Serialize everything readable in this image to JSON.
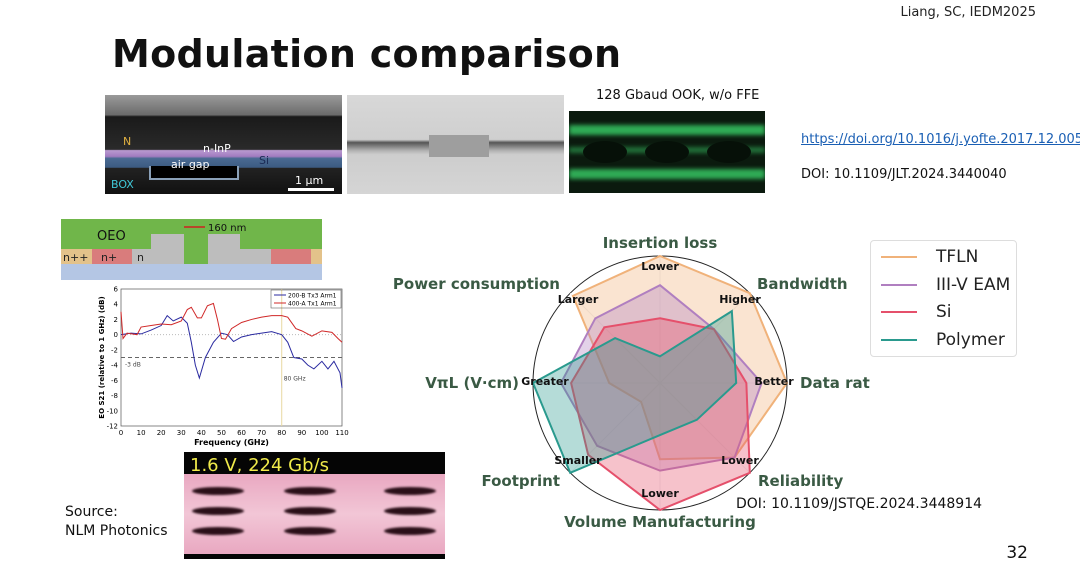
{
  "citation": "Liang, SC, IEDM2025",
  "title": "Modulation comparison",
  "sem_image": {
    "labels": [
      "N",
      "n-InP",
      "Si",
      "air gap",
      "BOX"
    ],
    "scale_bar": "1 μm"
  },
  "eye_diagram_top": {
    "caption": "128 Gbaud OOK, w/o FFE",
    "link": "https://doi.org/10.1016/j.yofte.2017.12.005",
    "doi": "DOI: 10.1109/JLT.2024.3440040"
  },
  "oeo_diagram": {
    "labels": [
      "OEO",
      "n++",
      "n+",
      "n"
    ],
    "dimension": "160 nm"
  },
  "eye_diagram_bottom": {
    "caption": "1.6 V, 224 Gb/s"
  },
  "source": {
    "line1": "Source:",
    "line2": "NLM Photonics"
  },
  "radar_doi": "DOI: 10.1109/JSTQE.2024.3448914",
  "page_number": "32",
  "chart_data": [
    {
      "type": "radar",
      "axes": [
        "Insertion loss",
        "Bandwidth",
        "Data rate",
        "Reliability",
        "Volume Manufacturing",
        "Footprint",
        "VπL (V·cm)",
        "Power consumption"
      ],
      "axis_direction_labels": [
        "Lower",
        "Larger",
        "Higher",
        "Better",
        "Greater",
        "Smaller",
        "Lower",
        "Lower"
      ],
      "range": [
        0,
        1
      ],
      "legend_position": "top-right",
      "series": [
        {
          "name": "TFLN",
          "color": "#f0b27a",
          "values": [
            1.0,
            1.0,
            1.0,
            0.83,
            0.6,
            0.21,
            0.4,
            0.97
          ]
        },
        {
          "name": "III-V EAM",
          "color": "#b07fc0",
          "values": [
            0.77,
            0.6,
            0.8,
            0.83,
            0.69,
            0.7,
            0.78,
            0.72
          ]
        },
        {
          "name": "Si",
          "color": "#e5506b",
          "values": [
            0.51,
            0.6,
            0.68,
            1.0,
            1.0,
            0.8,
            0.7,
            0.62
          ]
        },
        {
          "name": "Polymer",
          "color": "#2a9a8e",
          "values": [
            0.21,
            0.8,
            0.6,
            0.41,
            0.41,
            1.0,
            1.0,
            0.5
          ]
        }
      ]
    },
    {
      "type": "line",
      "xlabel": "Frequency (GHz)",
      "ylabel": "EO S21 (relative to 1 GHz) (dB)",
      "xlim": [
        0,
        110
      ],
      "ylim": [
        -12,
        6
      ],
      "xticks": [
        "0",
        "10",
        "20",
        "30",
        "40",
        "50",
        "60",
        "70",
        "80",
        "90",
        "100",
        "110"
      ],
      "yticks": [
        "6",
        "4",
        "2",
        "0",
        "-2",
        "-4",
        "-6",
        "-8",
        "-10",
        "-12"
      ],
      "annotations": [
        "-3 dB",
        "80 GHz"
      ],
      "legend_position": "top-right",
      "series": [
        {
          "name": "200-B Tx3 Arm1",
          "color": "#2a2aa0",
          "x": [
            0,
            5,
            10,
            15,
            20,
            23,
            26,
            30,
            33,
            35,
            37,
            39,
            42,
            46,
            50,
            53,
            56,
            60,
            65,
            70,
            75,
            80,
            83,
            86,
            90,
            93,
            96,
            100,
            103,
            106,
            109,
            110
          ],
          "y": [
            0,
            0.2,
            0.1,
            0.6,
            1.2,
            2.5,
            1.8,
            2.3,
            1.5,
            -1,
            -4,
            -5.7,
            -3,
            -1,
            0.2,
            0,
            -0.9,
            -0.3,
            0,
            0.2,
            0.4,
            0,
            -1,
            -3,
            -3.2,
            -4,
            -4.5,
            -3.5,
            -4.5,
            -3.5,
            -5,
            -7
          ]
        },
        {
          "name": "400-A Tx1 Arm1",
          "color": "#d02828",
          "x": [
            0,
            1,
            3,
            8,
            10,
            15,
            20,
            25,
            30,
            33,
            35,
            38,
            40,
            43,
            46,
            48,
            50,
            52,
            55,
            60,
            65,
            70,
            75,
            80,
            83,
            87,
            90,
            95,
            100,
            105,
            108,
            110
          ],
          "y": [
            3,
            -0.5,
            0.2,
            0,
            1,
            1.2,
            1.4,
            1.3,
            1.8,
            3.3,
            3.6,
            2.2,
            2.2,
            3.8,
            4.1,
            2,
            -0.5,
            -0.6,
            0.8,
            1.6,
            2,
            2.3,
            2.5,
            2.5,
            2.3,
            0.8,
            0.5,
            -0.2,
            0.5,
            0.3,
            -0.5,
            -1
          ]
        }
      ]
    }
  ]
}
